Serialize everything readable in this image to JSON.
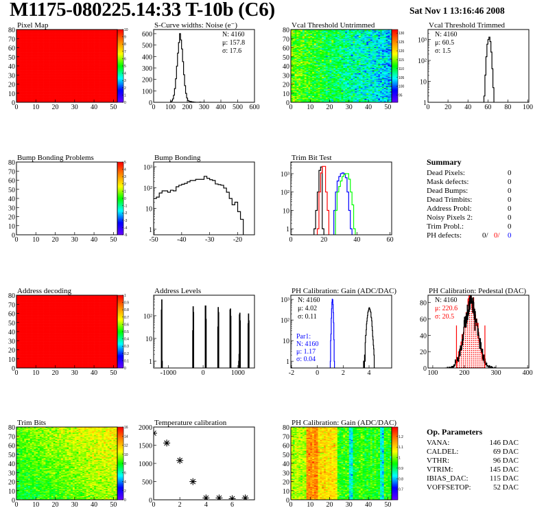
{
  "header": {
    "title": "M1175-080225.14:33 T-10b (C6)",
    "date": "Sat Nov  1 13:16:46 2008"
  },
  "summary": {
    "title": "Summary",
    "rows": [
      {
        "label": "Dead Pixels:",
        "value": "0"
      },
      {
        "label": "Mask defects:",
        "value": "0"
      },
      {
        "label": "Dead Bumps:",
        "value": "0"
      },
      {
        "label": "Dead Trimbits:",
        "value": "0"
      },
      {
        "label": "Address Probl:",
        "value": "0"
      },
      {
        "label": "Noisy Pixels 2:",
        "value": "0"
      },
      {
        "label": "Trim Probl.:",
        "value": "0"
      }
    ],
    "ph_defects": {
      "label": "PH defects:",
      "values": [
        {
          "text": "0/",
          "color": "#000000"
        },
        {
          "text": "0/",
          "color": "#ff0000"
        },
        {
          "text": "0",
          "color": "#0000ff"
        }
      ]
    }
  },
  "op_parameters": {
    "title": "Op. Parameters",
    "rows": [
      {
        "label": "VANA:",
        "value": "146 DAC"
      },
      {
        "label": "CALDEL:",
        "value": "69 DAC"
      },
      {
        "label": "VTHR:",
        "value": "96 DAC"
      },
      {
        "label": "VTRIM:",
        "value": "145 DAC"
      },
      {
        "label": "IBIAS_DAC:",
        "value": "115 DAC"
      },
      {
        "label": "VOFFSETOP:",
        "value": "52 DAC"
      }
    ]
  },
  "chart_data": [
    {
      "type": "heatmap",
      "title": "Pixel Map",
      "xlim": [
        0,
        52
      ],
      "ylim": [
        0,
        80
      ],
      "xticks": [
        0,
        10,
        20,
        30,
        40,
        50
      ],
      "yticks": [
        0,
        10,
        20,
        30,
        40,
        50,
        60,
        70,
        80
      ],
      "zlim": [
        0,
        10
      ],
      "zticks": [
        0,
        1,
        2,
        3,
        4,
        5,
        6,
        7,
        8,
        9,
        10
      ],
      "uniform_value": 10
    },
    {
      "type": "histogram",
      "title": "S-Curve widths: Noise (e⁻)",
      "xlim": [
        0,
        600
      ],
      "ylim": [
        0,
        636
      ],
      "yscale": "linear",
      "xticks": [
        0,
        100,
        200,
        300,
        400,
        500,
        600
      ],
      "yticks": [
        0,
        100,
        200,
        300,
        400,
        500,
        600
      ],
      "series": [
        {
          "color": "#000000",
          "start": 100,
          "width": 6,
          "counts": [
            4,
            12,
            29,
            62,
            120,
            206,
            316,
            430,
            522,
            600,
            545,
            466,
            355,
            241,
            145,
            78,
            37,
            16,
            10,
            8,
            6,
            4,
            3,
            2,
            1,
            0,
            0,
            0,
            0,
            2,
            0,
            0,
            0,
            0
          ]
        }
      ],
      "stats": [
        {
          "placement": "top-right",
          "lines": [
            {
              "text": "N: 4160",
              "color": "#000000"
            },
            {
              "text": "μ: 157.8",
              "color": "#000000"
            },
            {
              "text": "σ: 17.6",
              "color": "#000000"
            }
          ]
        }
      ]
    },
    {
      "type": "heatmap",
      "title": "Vcal Threshold Untrimmed",
      "xlim": [
        0,
        52
      ],
      "ylim": [
        0,
        80
      ],
      "xticks": [
        0,
        10,
        20,
        30,
        40,
        50
      ],
      "yticks": [
        0,
        10,
        20,
        30,
        40,
        50,
        60,
        70,
        80
      ],
      "zlim": [
        91,
        132
      ],
      "zticks": [
        95,
        100,
        105,
        110,
        115,
        120,
        125,
        130
      ],
      "trend": {
        "left": 114,
        "right": 103,
        "spread": 6
      }
    },
    {
      "type": "histogram",
      "title": "Vcal Threshold Trimmed",
      "xlim": [
        0,
        101
      ],
      "ylim": [
        1,
        3000
      ],
      "yscale": "log",
      "xticks": [
        0,
        20,
        40,
        60,
        80,
        100
      ],
      "yticks": [
        1,
        10,
        100,
        1000
      ],
      "series": [
        {
          "color": "#000000",
          "start": 55,
          "width": 1,
          "counts": [
            0,
            2,
            20,
            150,
            600,
            1000,
            1300,
            800,
            250,
            40,
            5,
            0
          ]
        }
      ],
      "stats": [
        {
          "placement": "top-left",
          "lines": [
            {
              "text": "N: 4160",
              "color": "#000000"
            },
            {
              "text": "μ: 60.5",
              "color": "#000000"
            },
            {
              "text": "σ:  1.5",
              "color": "#000000"
            }
          ]
        }
      ]
    },
    {
      "type": "heatmap",
      "title": "Bump Bonding Problems",
      "xlim": [
        0,
        52
      ],
      "ylim": [
        0,
        80
      ],
      "xticks": [
        0,
        10,
        20,
        30,
        40,
        50
      ],
      "yticks": [
        0,
        10,
        20,
        30,
        40,
        50,
        60,
        70,
        80
      ],
      "zlim": [
        -5,
        5
      ],
      "zticks": [
        -5,
        -4,
        -3,
        -2,
        -1,
        0,
        1,
        2,
        3,
        4,
        5
      ]
    },
    {
      "type": "histogram",
      "title": "Bump Bonding",
      "xlim": [
        -50,
        -14
      ],
      "ylim": [
        0.54,
        1700
      ],
      "yscale": "log",
      "xticks": [
        -50,
        -40,
        -30,
        -20
      ],
      "yticks": [
        1,
        10,
        100,
        1000
      ],
      "series": [
        {
          "color": "#000000",
          "start": -50,
          "width": 1,
          "counts": [
            30,
            35,
            55,
            70,
            70,
            60,
            75,
            70,
            110,
            130,
            145,
            160,
            190,
            220,
            220,
            250,
            250,
            250,
            350,
            280,
            240,
            220,
            150,
            140,
            130,
            95,
            60,
            30,
            15,
            20,
            7,
            3
          ]
        }
      ]
    },
    {
      "type": "histogram",
      "title": "Trim Bit Test",
      "xlim": [
        0,
        61
      ],
      "ylim": [
        0.47,
        4300
      ],
      "yscale": "log",
      "xticks": [
        0,
        20,
        40,
        60
      ],
      "yticks": [
        1,
        10,
        100,
        1000
      ],
      "series": [
        {
          "color": "#000000",
          "start": 14,
          "width": 1,
          "counts": [
            1,
            10,
            100,
            1500,
            2300,
            1,
            0
          ]
        },
        {
          "color": "#ff0000",
          "start": 16,
          "width": 1,
          "counts": [
            1,
            100,
            1100,
            2500,
            2500,
            100,
            10,
            0
          ]
        },
        {
          "color": "#0000ff",
          "start": 26,
          "width": 1,
          "counts": [
            10,
            100,
            400,
            700,
            1000,
            1100,
            1000,
            600,
            100,
            10,
            1,
            0
          ]
        },
        {
          "color": "#00ff00",
          "start": 27,
          "width": 1,
          "counts": [
            10,
            100,
            200,
            400,
            700,
            900,
            1000,
            1000,
            500,
            100,
            20,
            1,
            0
          ]
        }
      ]
    },
    {
      "type": "heatmap",
      "title": "Address decoding",
      "xlim": [
        0,
        52
      ],
      "ylim": [
        0,
        80
      ],
      "xticks": [
        0,
        10,
        20,
        30,
        40,
        50
      ],
      "yticks": [
        0,
        10,
        20,
        30,
        40,
        50,
        60,
        70,
        80
      ],
      "zlim": [
        0,
        1
      ],
      "zticks": [
        0,
        0.1,
        0.2,
        0.3,
        0.4,
        0.5,
        0.6,
        0.7,
        0.8,
        0.9,
        1
      ],
      "uniform_value": 1
    },
    {
      "type": "histogram",
      "title": "Address Levels",
      "xlim": [
        -1420,
        1475
      ],
      "ylim": [
        0.5,
        800
      ],
      "yscale": "log",
      "xticks": [
        -1000,
        0,
        1000
      ],
      "yticks": [
        1,
        10,
        100
      ],
      "series": [
        {
          "color": "#000000",
          "width": 10,
          "pairs": [
            [
              -1200,
              180
            ],
            [
              -1190,
              500
            ],
            [
              -1180,
              1
            ],
            [
              -300,
              22
            ],
            [
              -290,
              250
            ],
            [
              -280,
              140
            ],
            [
              60,
              270
            ],
            [
              70,
              270
            ],
            [
              80,
              70
            ],
            [
              420,
              32
            ],
            [
              430,
              230
            ],
            [
              440,
              140
            ],
            [
              770,
              180
            ],
            [
              780,
              200
            ],
            [
              790,
              95
            ],
            [
              1020,
              1
            ],
            [
              1030,
              2
            ],
            [
              1040,
              110
            ],
            [
              1050,
              130
            ],
            [
              1060,
              60
            ],
            [
              1290,
              45
            ],
            [
              1300,
              120
            ],
            [
              1310,
              60
            ]
          ]
        }
      ]
    },
    {
      "type": "histogram",
      "title": "PH Calibration: Gain (ADC/DAC)",
      "xlim": [
        -2.05,
        5.75
      ],
      "ylim": [
        0.47,
        1600
      ],
      "yscale": "log",
      "xticks": [
        -2,
        0,
        2,
        4
      ],
      "yticks": [
        1,
        10,
        100,
        1000
      ],
      "series": [
        {
          "color": "#0000ff",
          "gauss": {
            "n": 4160,
            "mu": 1.17,
            "sigma": 0.04
          },
          "width": 0.025,
          "range": [
            -1,
            5.5
          ]
        },
        {
          "color": "#000000",
          "gauss": {
            "n": 4160,
            "mu": 4.02,
            "sigma": 0.11
          },
          "width": 0.025,
          "range": [
            3.5,
            4.5
          ]
        }
      ],
      "stats": [
        {
          "placement": "top-left",
          "lines": [
            {
              "text": "N: 4160",
              "color": "#000000"
            },
            {
              "text": "μ: 4.02",
              "color": "#000000"
            },
            {
              "text": "σ: 0.11",
              "color": "#000000"
            }
          ]
        },
        {
          "placement": "bottom-left",
          "lines": [
            {
              "text": "Par1:",
              "color": "#0000ff"
            },
            {
              "text": "N: 4160",
              "color": "#0000ff"
            },
            {
              "text": "μ: 1.17",
              "color": "#0000ff"
            },
            {
              "text": "σ: 0.04",
              "color": "#0000ff"
            }
          ]
        }
      ]
    },
    {
      "type": "histogram",
      "title": "PH Calibration: Pedestal (DAC)",
      "xlim": [
        85,
        404
      ],
      "ylim": [
        0,
        89
      ],
      "yscale": "linear",
      "xticks": [
        100,
        200,
        300,
        400
      ],
      "yticks": [
        0,
        20,
        40,
        60,
        80
      ],
      "series": [
        {
          "color": "#ff0000",
          "fill": "hatch",
          "gauss": {
            "n": 4160,
            "mu": 220.6,
            "sigma": 20.5
          },
          "width": 1,
          "range": [
            175,
            265
          ]
        },
        {
          "color": "#000000",
          "gauss": {
            "n": 4160,
            "mu": 220.6,
            "sigma": 20.5
          },
          "width": 1,
          "range": [
            140,
            300
          ]
        }
      ],
      "cut_lines": [
        {
          "x": 175,
          "y": 52,
          "color": "#ff0000"
        },
        {
          "x": 265,
          "y": 52,
          "color": "#ff0000"
        }
      ],
      "stats": [
        {
          "placement": "top-left",
          "lines": [
            {
              "text": "N: 4160",
              "color": "#000000"
            },
            {
              "text": "μ: 220.6",
              "color": "#ff0000"
            },
            {
              "text": "σ: 20.5",
              "color": "#ff0000"
            }
          ]
        }
      ]
    },
    {
      "type": "heatmap",
      "title": "Trim Bits",
      "xlim": [
        0,
        52
      ],
      "ylim": [
        0,
        80
      ],
      "xticks": [
        0,
        10,
        20,
        30,
        40,
        50
      ],
      "yticks": [
        0,
        10,
        20,
        30,
        40,
        50,
        60,
        70,
        80
      ],
      "zlim": [
        0,
        16
      ],
      "zticks": [
        0,
        2,
        4,
        6,
        8,
        10,
        12,
        14,
        16
      ],
      "trend": {
        "left": 8.3,
        "right": 10.5,
        "spread": 1.6
      }
    },
    {
      "type": "scatter",
      "title": "Temperature calibration",
      "xlim": [
        0,
        7.7
      ],
      "ylim": [
        0,
        2000
      ],
      "xticks": [
        0,
        2,
        4,
        6
      ],
      "yticks": [
        0,
        500,
        1000,
        1500,
        2000
      ],
      "marker": "asterisk",
      "points": [
        [
          0,
          1830
        ],
        [
          1,
          1560
        ],
        [
          2,
          1080
        ],
        [
          3,
          500
        ],
        [
          4,
          50
        ],
        [
          5,
          50
        ],
        [
          6,
          30
        ],
        [
          7,
          50
        ]
      ]
    },
    {
      "type": "heatmap",
      "title": "PH Calibration: Gain (ADC/DAC)",
      "xlim": [
        0,
        52
      ],
      "ylim": [
        0,
        80
      ],
      "xticks": [
        0,
        10,
        20,
        30,
        40,
        50
      ],
      "yticks": [
        0,
        10,
        20,
        30,
        40,
        50,
        60,
        70,
        80
      ],
      "zlim": [
        0.6,
        1.29
      ],
      "zticks": [
        0.7,
        0.8,
        0.9,
        1,
        1.1,
        1.2
      ],
      "column_pattern": true
    }
  ],
  "colors": {
    "palette": [
      "#6a00ff",
      "#0000ff",
      "#00ffff",
      "#00ff00",
      "#ffff00",
      "#ff8800",
      "#ff0000"
    ]
  }
}
